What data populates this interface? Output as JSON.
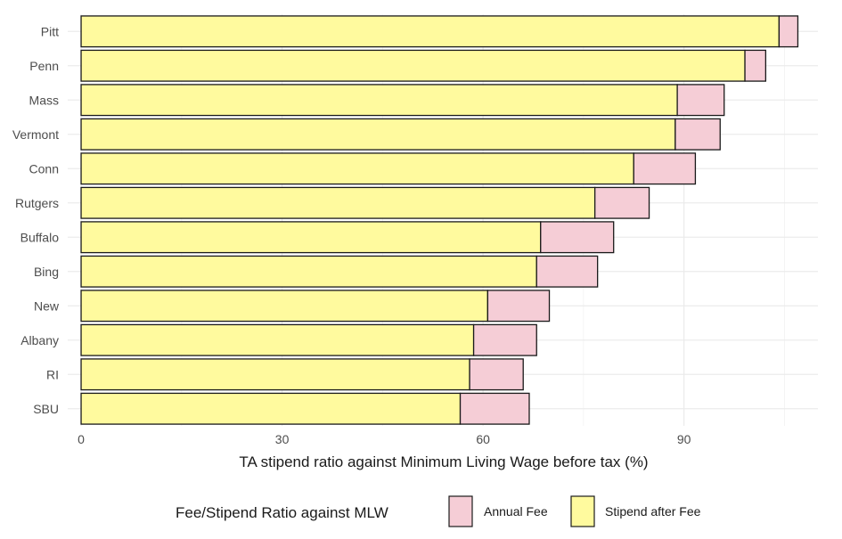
{
  "chart_data": {
    "type": "bar",
    "orientation": "horizontal",
    "stacked": true,
    "categories": [
      "Pitt",
      "Penn",
      "Mass",
      "Vermont",
      "Conn",
      "Rutgers",
      "Buffalo",
      "Bing",
      "New",
      "Albany",
      "RI",
      "SBU"
    ],
    "series": [
      {
        "name": "Stipend after Fee",
        "color": "#FFFA9E",
        "values": [
          104.2,
          99.1,
          89.0,
          88.7,
          82.5,
          76.7,
          68.6,
          68.0,
          60.7,
          58.6,
          58.0,
          56.6
        ]
      },
      {
        "name": "Annual Fee",
        "color": "#F5CDD6",
        "values": [
          2.8,
          3.1,
          7.0,
          6.7,
          9.2,
          8.1,
          10.9,
          9.1,
          9.2,
          9.4,
          8.0,
          10.3
        ]
      }
    ],
    "xlabel": "TA stipend ratio against Minimum Living Wage before tax  (%)",
    "ylabel": "",
    "xlim": [
      -2,
      110
    ],
    "xticks": [
      0,
      30,
      60,
      90
    ],
    "grid": true,
    "legend": {
      "title": "Fee/Stipend Ratio against MLW",
      "position": "bottom",
      "items": [
        {
          "label": "Annual Fee",
          "color": "#F5CDD6"
        },
        {
          "label": "Stipend after Fee",
          "color": "#FFFA9E"
        }
      ]
    }
  }
}
